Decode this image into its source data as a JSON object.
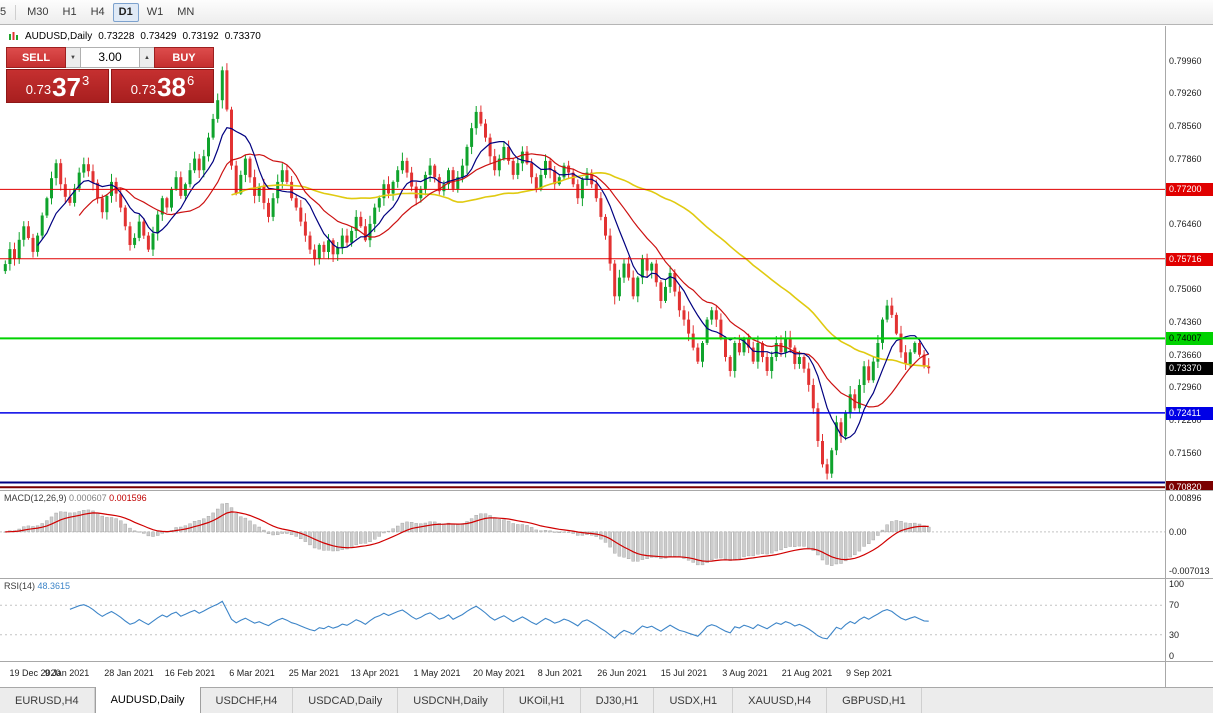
{
  "toolbar": {
    "buttons": [
      {
        "label": "5",
        "active": false,
        "partial": true
      },
      {
        "label": "M30",
        "active": false
      },
      {
        "label": "H1",
        "active": false
      },
      {
        "label": "H4",
        "active": false
      },
      {
        "label": "D1",
        "active": true
      },
      {
        "label": "W1",
        "active": false
      },
      {
        "label": "MN",
        "active": false
      }
    ]
  },
  "chart_info": {
    "symbol": "AUDUSD,Daily",
    "open": "0.73228",
    "high": "0.73429",
    "low": "0.73192",
    "close": "0.73370"
  },
  "trade": {
    "sell_label": "SELL",
    "buy_label": "BUY",
    "volume": "3.00",
    "sell_price": {
      "prefix": "0.73",
      "big": "37",
      "sup": "3"
    },
    "buy_price": {
      "prefix": "0.73",
      "big": "38",
      "sup": "6"
    }
  },
  "price_axis": {
    "labels": [
      "0.79960",
      "0.79260",
      "0.78560",
      "0.77860",
      "0.77160",
      "0.76460",
      "0.75760",
      "0.75060",
      "0.74360",
      "0.73660",
      "0.72960",
      "0.72260",
      "0.71560",
      "0.70860"
    ],
    "current": {
      "text": "0.73370",
      "bg": "#000000",
      "fg": "#ffffff"
    }
  },
  "indicators": {
    "macd": {
      "name": "MACD(12,26,9)",
      "value_main": "0.000607",
      "value_signal": "0.001596",
      "axis_top": "0.00896",
      "axis_zero": "0.00",
      "axis_bottom": "-0.007013"
    },
    "rsi": {
      "name": "RSI(14)",
      "value": "48.3615",
      "axis": [
        "100",
        "70",
        "30",
        "0"
      ]
    }
  },
  "dates": [
    "19 Dec 2020",
    "9 Jan 2021",
    "28 Jan 2021",
    "16 Feb 2021",
    "6 Mar 2021",
    "25 Mar 2021",
    "13 Apr 2021",
    "1 May 2021",
    "20 May 2021",
    "8 Jun 2021",
    "26 Jun 2021",
    "15 Jul 2021",
    "3 Aug 2021",
    "21 Aug 2021",
    "9 Sep 2021"
  ],
  "tabbar": {
    "tabs": [
      {
        "label": "EURUSD,H4",
        "active": false
      },
      {
        "label": "AUDUSD,Daily",
        "active": true
      },
      {
        "label": "USDCHF,H4",
        "active": false
      },
      {
        "label": "USDCAD,Daily",
        "active": false
      },
      {
        "label": "USDCNH,Daily",
        "active": false
      },
      {
        "label": "UKOil,H1",
        "active": false
      },
      {
        "label": "DJ30,H1",
        "active": false
      },
      {
        "label": "USDX,H1",
        "active": false
      },
      {
        "label": "XAUUSD,H4",
        "active": false
      },
      {
        "label": "GBPUSD,H1",
        "active": false
      }
    ]
  },
  "colors": {
    "up": "#0fa32c",
    "down": "#e23232",
    "macd_hist": "#cccccc",
    "macd_hist_border": "#9f9f9f",
    "macd_signal": "#d00000",
    "rsi_line": "#3d85c8",
    "grid": "#c4c4c4"
  },
  "chart_data": {
    "type": "candlestick",
    "symbol": "AUDUSD",
    "timeframe": "Daily",
    "title": "AUDUSD,Daily",
    "y_range": {
      "top": 0.807,
      "bottom": 0.7076
    },
    "closes": [
      0.756,
      0.7592,
      0.7571,
      0.7612,
      0.7641,
      0.7616,
      0.7586,
      0.7621,
      0.7664,
      0.7701,
      0.7744,
      0.7776,
      0.7731,
      0.7704,
      0.7691,
      0.7722,
      0.7756,
      0.7774,
      0.7759,
      0.7734,
      0.7701,
      0.7671,
      0.7706,
      0.7736,
      0.7711,
      0.7681,
      0.7641,
      0.7601,
      0.7616,
      0.7651,
      0.7621,
      0.7591,
      0.7626,
      0.7666,
      0.7701,
      0.7681,
      0.7721,
      0.7746,
      0.7706,
      0.7731,
      0.7761,
      0.7786,
      0.7761,
      0.7791,
      0.7831,
      0.7871,
      0.7911,
      0.7975,
      0.7891,
      0.7771,
      0.7711,
      0.7751,
      0.7786,
      0.7746,
      0.7706,
      0.7726,
      0.7691,
      0.7661,
      0.7701,
      0.7736,
      0.7761,
      0.7736,
      0.7701,
      0.7681,
      0.7651,
      0.7621,
      0.7591,
      0.7571,
      0.7601,
      0.7586,
      0.7611,
      0.7581,
      0.7596,
      0.7621,
      0.7606,
      0.7631,
      0.7661,
      0.7641,
      0.7611,
      0.7646,
      0.7681,
      0.7701,
      0.7731,
      0.7711,
      0.7736,
      0.7761,
      0.7781,
      0.7756,
      0.7726,
      0.7701,
      0.7721,
      0.7751,
      0.7771,
      0.7746,
      0.7716,
      0.7731,
      0.7761,
      0.7721,
      0.7746,
      0.7771,
      0.7811,
      0.7851,
      0.7886,
      0.7861,
      0.7831,
      0.7791,
      0.7761,
      0.7786,
      0.7811,
      0.7781,
      0.7751,
      0.7776,
      0.7801,
      0.7776,
      0.7746,
      0.7721,
      0.7751,
      0.7781,
      0.7761,
      0.7731,
      0.7746,
      0.7771,
      0.7756,
      0.7731,
      0.7701,
      0.7741,
      0.7756,
      0.7731,
      0.7701,
      0.7661,
      0.7621,
      0.7561,
      0.7491,
      0.7531,
      0.7561,
      0.7531,
      0.7491,
      0.7531,
      0.7571,
      0.7546,
      0.7561,
      0.7521,
      0.7481,
      0.7511,
      0.7541,
      0.7501,
      0.7461,
      0.7441,
      0.7411,
      0.7381,
      0.7351,
      0.7391,
      0.7441,
      0.7461,
      0.7441,
      0.7401,
      0.7361,
      0.7331,
      0.7391,
      0.7371,
      0.7401,
      0.7381,
      0.7351,
      0.7391,
      0.7361,
      0.7331,
      0.7361,
      0.7391,
      0.7371,
      0.7401,
      0.7381,
      0.7346,
      0.7361,
      0.7336,
      0.7301,
      0.7251,
      0.7181,
      0.7131,
      0.7111,
      0.7161,
      0.7221,
      0.7191,
      0.7241,
      0.7281,
      0.7251,
      0.7301,
      0.7341,
      0.7311,
      0.7351,
      0.7391,
      0.7441,
      0.7471,
      0.7451,
      0.7411,
      0.7371,
      0.7346,
      0.7371,
      0.7391,
      0.7366,
      0.7341,
      0.7337
    ],
    "ma": [
      {
        "period": 50,
        "color": "#e0ca10",
        "width": 1.6,
        "name": "sma-slow-yellow"
      },
      {
        "period": 17,
        "color": "#cc1111",
        "width": 1.2,
        "name": "sma-mid-red"
      },
      {
        "period": 8,
        "color": "#000080",
        "width": 1.2,
        "name": "sma-fast-navy"
      }
    ],
    "hlines": [
      {
        "price": 0.772,
        "label": "0.77200",
        "color": "#e00000",
        "width": 1,
        "badge_fg": "#ffffff"
      },
      {
        "price": 0.75716,
        "label": "0.75716",
        "color": "#e00000",
        "width": 1,
        "badge_fg": "#ffffff"
      },
      {
        "price": 0.74007,
        "label": "0.74007",
        "color": "#00d200",
        "width": 2,
        "badge_fg": "#000000"
      },
      {
        "price": 0.72411,
        "label": "0.72411",
        "color": "#0000e6",
        "width": 1.5,
        "badge_fg": "#ffffff"
      },
      {
        "price": 0.7092,
        "label": "",
        "color": "#000080",
        "width": 2
      },
      {
        "price": 0.7082,
        "label": "0.70820",
        "color": "#7b0000",
        "width": 2,
        "badge_fg": "#ffffff"
      }
    ],
    "x_labels": [
      "19 Dec 2020",
      "9 Jan 2021",
      "28 Jan 2021",
      "16 Feb 2021",
      "6 Mar 2021",
      "25 Mar 2021",
      "13 Apr 2021",
      "1 May 2021",
      "20 May 2021",
      "8 Jun 2021",
      "26 Jun 2021",
      "15 Jul 2021",
      "3 Aug 2021",
      "21 Aug 2021",
      "9 Sep 2021"
    ],
    "indicators": [
      {
        "name": "MACD",
        "params": "12,26,9",
        "display_values": [
          "0.000607",
          "0.001596"
        ],
        "axis_labels": [
          "0.00896",
          "0.00",
          "-0.007013"
        ]
      },
      {
        "name": "RSI",
        "params": "14",
        "display_value": "48.3615",
        "axis_labels": [
          "100",
          "70",
          "30",
          "0"
        ]
      }
    ]
  }
}
